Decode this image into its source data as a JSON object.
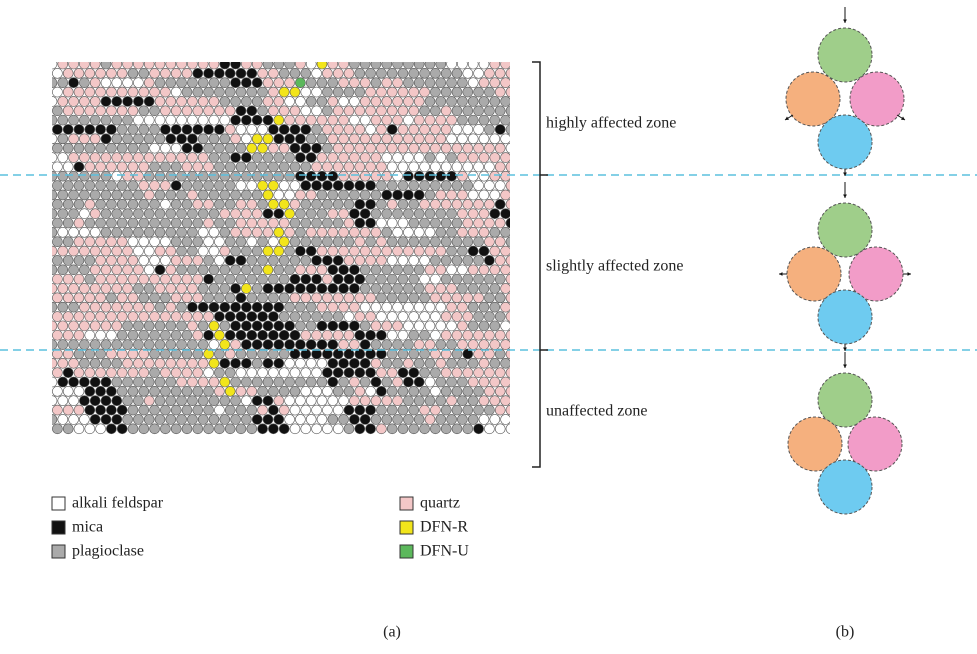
{
  "zones": [
    "highly affected zone",
    "slightly affected zone",
    "unaffected zone"
  ],
  "legend_left": [
    "alkali feldspar",
    "mica",
    "plagioclase"
  ],
  "legend_right": [
    "quartz",
    "DFN-R",
    "DFN-U"
  ],
  "panel_labels": [
    "(a)",
    "(b)"
  ]
}
